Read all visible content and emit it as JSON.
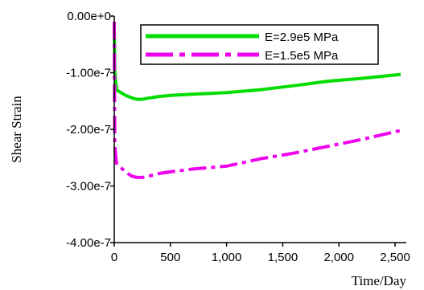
{
  "chart_data": {
    "type": "line",
    "xlabel": "Time/Day",
    "ylabel": "Shear  Strain",
    "xlim": [
      0,
      2600
    ],
    "ylim": [
      -4e-07,
      0.0
    ],
    "x_ticks": [
      0,
      500,
      1000,
      1500,
      2000,
      2500
    ],
    "x_tick_labels": [
      "0",
      "500",
      "1,000",
      "1,500",
      "2,000",
      "2,500"
    ],
    "y_ticks": [
      0.0,
      -1e-07,
      -2e-07,
      -3e-07,
      -4e-07
    ],
    "y_tick_labels": [
      "0.00e+0",
      "-1.00e-7",
      "-2.00e-7",
      "-3.00e-7",
      "-4.00e-7"
    ],
    "grid": false,
    "legend_position": "top-right",
    "series": [
      {
        "name": "E=2.9e5 MPa",
        "color": "#00dd00",
        "style": "solid",
        "x": [
          0,
          5,
          20,
          50,
          100,
          150,
          200,
          250,
          300,
          400,
          500,
          700,
          1000,
          1300,
          1600,
          1900,
          2200,
          2550
        ],
        "y": [
          -1e-08,
          -1e-07,
          -1.3e-07,
          -1.34e-07,
          -1.4e-07,
          -1.44e-07,
          -1.47e-07,
          -1.47e-07,
          -1.45e-07,
          -1.42e-07,
          -1.4e-07,
          -1.38e-07,
          -1.35e-07,
          -1.3e-07,
          -1.23e-07,
          -1.15e-07,
          -1.1e-07,
          -1.03e-07
        ]
      },
      {
        "name": "E=1.5e5 MPa",
        "color": "#ee00ee",
        "style": "dash-dot",
        "x": [
          0,
          5,
          20,
          50,
          100,
          150,
          200,
          250,
          300,
          400,
          500,
          700,
          1000,
          1300,
          1600,
          1900,
          2200,
          2550
        ],
        "y": [
          -1e-08,
          -2.3e-07,
          -2.6e-07,
          -2.66e-07,
          -2.75e-07,
          -2.82e-07,
          -2.85e-07,
          -2.85e-07,
          -2.83e-07,
          -2.78e-07,
          -2.75e-07,
          -2.7e-07,
          -2.65e-07,
          -2.52e-07,
          -2.42e-07,
          -2.3e-07,
          -2.18e-07,
          -2.02e-07
        ]
      }
    ]
  }
}
